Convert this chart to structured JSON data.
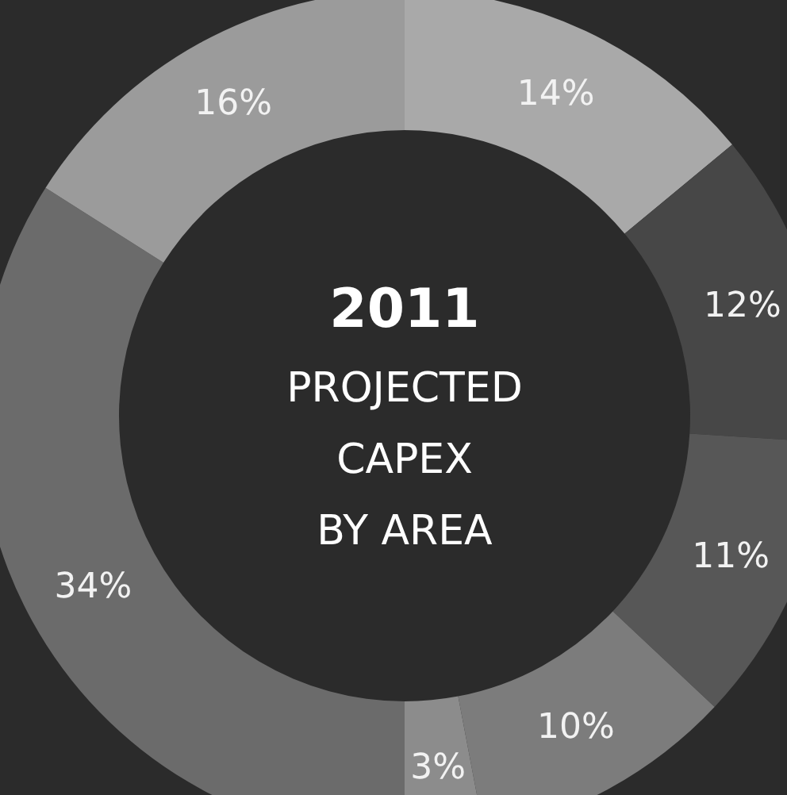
{
  "chart_data": {
    "type": "donut",
    "title": "2011",
    "subtitle": "PROJECTED CAPEX BY AREA",
    "categories": [
      null,
      null,
      null,
      null,
      null,
      null,
      null
    ],
    "values": [
      14,
      12,
      11,
      10,
      3,
      34,
      16
    ],
    "value_labels": [
      "14%",
      "12%",
      "11%",
      "10%",
      "3%",
      "34%",
      "16%"
    ],
    "colors": [
      "#a9a9a9",
      "#474747",
      "#575757",
      "#7c7c7c",
      "#8c8c8c",
      "#6b6b6b",
      "#9b9b9b"
    ]
  }
}
